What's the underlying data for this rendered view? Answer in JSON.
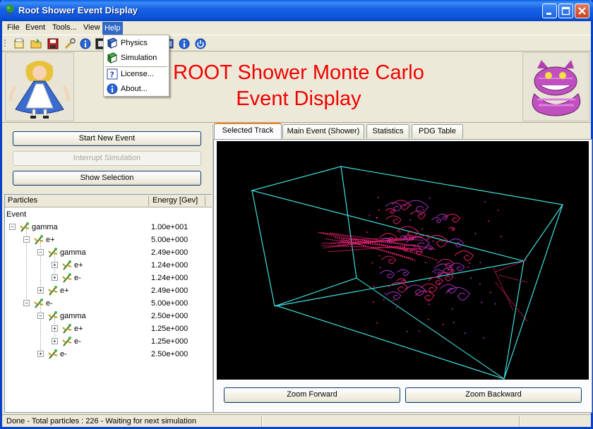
{
  "window": {
    "title": "Root Shower Event Display",
    "min_icon": "minimize-icon",
    "max_icon": "maximize-icon",
    "close_icon": "close-icon",
    "title_icon": "tree-icon"
  },
  "menubar": {
    "items": [
      {
        "label": "File"
      },
      {
        "label": "Event"
      },
      {
        "label": "Tools..."
      },
      {
        "label": "View"
      },
      {
        "label": "Help",
        "active": true
      }
    ]
  },
  "help_menu": {
    "items": [
      {
        "label": "Physics",
        "icon": "book-blue-icon"
      },
      {
        "label": "Simulation",
        "icon": "book-green-icon"
      },
      {
        "label": "License...",
        "icon": "help-icon"
      },
      {
        "label": "About...",
        "icon": "info-icon"
      }
    ]
  },
  "banner": {
    "line1": "ROOT Shower Monte Carlo",
    "line2": "Event Display",
    "color": "#f00000",
    "left_image": "alice-image",
    "right_image": "cheshire-cat-image"
  },
  "controls": {
    "start": "Start New Event",
    "interrupt": "Interrupt Simulation",
    "show_selection": "Show Selection"
  },
  "tree": {
    "col_particles": "Particles",
    "col_energy": "Energy [Gev]",
    "root": "Event",
    "rows": [
      {
        "label": "gamma",
        "energy": "1.00e+001"
      },
      {
        "label": "e+",
        "energy": "5.00e+000"
      },
      {
        "label": "gamma",
        "energy": "2.49e+000"
      },
      {
        "label": "e+",
        "energy": "1.24e+000"
      },
      {
        "label": "e-",
        "energy": "1.24e+000"
      },
      {
        "label": "e+",
        "energy": "2.49e+000"
      },
      {
        "label": "e-",
        "energy": "5.00e+000"
      },
      {
        "label": "gamma",
        "energy": "2.50e+000"
      },
      {
        "label": "e+",
        "energy": "1.25e+000"
      },
      {
        "label": "e-",
        "energy": "1.25e+000"
      },
      {
        "label": "e-",
        "energy": "2.50e+000"
      }
    ]
  },
  "tabs": [
    {
      "label": "Selected Track",
      "active": true
    },
    {
      "label": "Main Event (Shower)"
    },
    {
      "label": "Statistics"
    },
    {
      "label": "PDG Table"
    }
  ],
  "viewer": {
    "zoom_forward": "Zoom Forward",
    "zoom_backward": "Zoom Backward",
    "box_color": "#40e0e0",
    "track_color": "#e0206a",
    "secondary_color": "#a030c0"
  },
  "status": {
    "text": "Done - Total particles : 226 - Waiting for next simulation"
  }
}
